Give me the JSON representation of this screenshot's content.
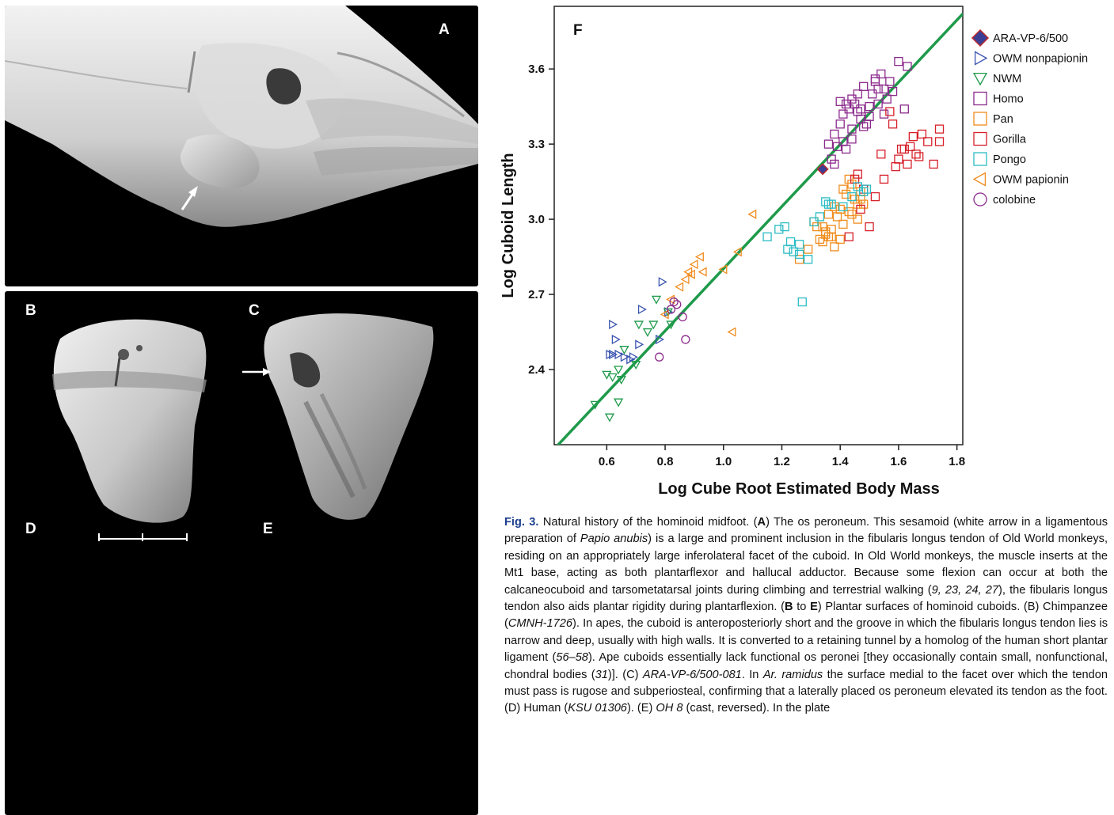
{
  "panels": {
    "a": "A",
    "b": "B",
    "c": "C",
    "d": "D",
    "e": "E",
    "f": "F"
  },
  "chart_data": {
    "type": "scatter",
    "title": "",
    "xlabel": "Log Cube Root Estimated Body Mass",
    "ylabel": "Log Cuboid Length",
    "xlim": [
      0.42,
      1.82
    ],
    "ylim": [
      2.1,
      3.85
    ],
    "xticks": [
      "0.6",
      "0.8",
      "1.0",
      "1.2",
      "1.4",
      "1.6",
      "1.8"
    ],
    "yticks": [
      "2.4",
      "2.7",
      "3.0",
      "3.3",
      "3.6"
    ],
    "legend_position": "right-outside",
    "grid": false,
    "regression_line": {
      "x": [
        0.42,
        1.82
      ],
      "y": [
        2.083,
        3.82
      ],
      "color": "#1e9a4a"
    },
    "series": [
      {
        "name": "ARA-VP-6/500",
        "marker": "diamond",
        "color": "#3a3f95",
        "edge": "#c0282b",
        "x": [
          1.34
        ],
        "y": [
          3.2
        ]
      },
      {
        "name": "OWM nonpapionin",
        "marker": "triangle-right",
        "color": "#3b55b0",
        "x": [
          0.62,
          0.63,
          0.62,
          0.64,
          0.66,
          0.68,
          0.69,
          0.71,
          0.72,
          0.78,
          0.79,
          0.81,
          0.61
        ],
        "y": [
          2.58,
          2.52,
          2.46,
          2.46,
          2.45,
          2.44,
          2.45,
          2.5,
          2.64,
          2.52,
          2.75,
          2.63,
          2.46
        ]
      },
      {
        "name": "NWM",
        "marker": "triangle-down",
        "color": "#1e9a4a",
        "x": [
          0.56,
          0.61,
          0.62,
          0.64,
          0.64,
          0.66,
          0.7,
          0.71,
          0.74,
          0.76,
          0.77,
          0.81,
          0.82,
          0.6,
          0.65
        ],
        "y": [
          2.26,
          2.21,
          2.37,
          2.4,
          2.27,
          2.48,
          2.42,
          2.58,
          2.55,
          2.58,
          2.68,
          2.63,
          2.58,
          2.38,
          2.36
        ]
      },
      {
        "name": "Homo",
        "marker": "square",
        "color": "#8b2a8c",
        "x": [
          1.36,
          1.37,
          1.38,
          1.39,
          1.4,
          1.41,
          1.42,
          1.43,
          1.44,
          1.45,
          1.46,
          1.47,
          1.48,
          1.49,
          1.5,
          1.51,
          1.52,
          1.53,
          1.54,
          1.55,
          1.56,
          1.57,
          1.6,
          1.63,
          1.41,
          1.44,
          1.47,
          1.5,
          1.53,
          1.38,
          1.42,
          1.46,
          1.52,
          1.58,
          1.62,
          1.48,
          1.44,
          1.55,
          1.4
        ],
        "y": [
          3.3,
          3.24,
          3.34,
          3.29,
          3.38,
          3.42,
          3.46,
          3.44,
          3.48,
          3.46,
          3.5,
          3.4,
          3.53,
          3.38,
          3.45,
          3.5,
          3.55,
          3.46,
          3.58,
          3.52,
          3.48,
          3.55,
          3.63,
          3.61,
          3.31,
          3.36,
          3.44,
          3.41,
          3.52,
          3.22,
          3.28,
          3.43,
          3.56,
          3.51,
          3.44,
          3.37,
          3.32,
          3.42,
          3.47
        ]
      },
      {
        "name": "Pan",
        "marker": "square",
        "color": "#f08c1e",
        "x": [
          1.26,
          1.29,
          1.31,
          1.33,
          1.34,
          1.35,
          1.36,
          1.37,
          1.38,
          1.39,
          1.4,
          1.41,
          1.42,
          1.43,
          1.44,
          1.45,
          1.46,
          1.47,
          1.48,
          1.34,
          1.36,
          1.38,
          1.41,
          1.44,
          1.47,
          1.35,
          1.32,
          1.4,
          1.43,
          1.46,
          1.37
        ],
        "y": [
          2.84,
          2.88,
          2.99,
          2.92,
          2.91,
          2.94,
          3.02,
          2.96,
          2.89,
          3.01,
          3.04,
          2.98,
          3.1,
          3.03,
          3.14,
          3.08,
          3.06,
          3.11,
          3.06,
          2.97,
          2.93,
          3.05,
          3.12,
          3.02,
          3.08,
          2.95,
          2.97,
          2.92,
          3.16,
          3.0,
          2.93
        ]
      },
      {
        "name": "Gorilla",
        "marker": "square",
        "color": "#d7202a",
        "x": [
          1.46,
          1.48,
          1.5,
          1.52,
          1.55,
          1.57,
          1.58,
          1.6,
          1.62,
          1.63,
          1.64,
          1.65,
          1.66,
          1.68,
          1.7,
          1.72,
          1.74,
          1.54,
          1.59,
          1.61,
          1.45,
          1.43,
          1.47,
          1.67,
          1.74
        ],
        "y": [
          3.18,
          3.12,
          2.97,
          3.09,
          3.16,
          3.43,
          3.38,
          3.24,
          3.28,
          3.22,
          3.29,
          3.33,
          3.26,
          3.34,
          3.31,
          3.22,
          3.36,
          3.26,
          3.21,
          3.28,
          3.16,
          2.93,
          3.04,
          3.25,
          3.31
        ]
      },
      {
        "name": "Pongo",
        "marker": "square",
        "color": "#2bbcc4",
        "x": [
          1.15,
          1.19,
          1.21,
          1.22,
          1.23,
          1.24,
          1.26,
          1.27,
          1.29,
          1.31,
          1.33,
          1.35,
          1.37,
          1.41,
          1.44,
          1.46,
          1.48,
          1.49,
          1.26,
          1.36
        ],
        "y": [
          2.93,
          2.96,
          2.97,
          2.88,
          2.91,
          2.87,
          2.9,
          2.67,
          2.84,
          2.99,
          3.01,
          3.07,
          3.06,
          3.05,
          3.09,
          3.13,
          3.11,
          3.12,
          2.86,
          3.06
        ]
      },
      {
        "name": "OWM papionin",
        "marker": "triangle-left",
        "color": "#f08c1e",
        "x": [
          0.8,
          0.85,
          0.87,
          0.88,
          0.89,
          0.9,
          0.92,
          0.93,
          1.0,
          1.03,
          1.05,
          1.1,
          0.82
        ],
        "y": [
          2.62,
          2.73,
          2.76,
          2.79,
          2.78,
          2.82,
          2.85,
          2.79,
          2.8,
          2.55,
          2.87,
          3.02,
          2.68
        ]
      },
      {
        "name": "colobine",
        "marker": "circle",
        "color": "#8b2a8c",
        "x": [
          0.78,
          0.82,
          0.83,
          0.86,
          0.87,
          0.84
        ],
        "y": [
          2.45,
          2.64,
          2.67,
          2.61,
          2.52,
          2.66
        ]
      }
    ]
  },
  "caption": {
    "fig_label": "Fig. 3.",
    "text_1": " Natural history of the hominoid midfoot. (",
    "bold_a": "A",
    "text_2": ") The os peroneum. This sesamoid (white arrow in a ligamentous preparation of ",
    "italic_papio": "Papio anubis",
    "text_3": ") is a large and prominent inclusion in the fibularis longus tendon of Old World monkeys, residing on an appropriately large inferolateral facet of the cuboid. In Old World monkeys, the muscle inserts at the Mt1 base, acting as both plantarflexor and hallucal adductor. Because some flexion can occur at both the calcaneocuboid and tarsometatarsal joints during climbing and terrestrial walking (",
    "ref_1": "9, 23, 24, 27",
    "text_4": "), the fibularis longus tendon also aids plantar rigidity during plantarflexion. (",
    "bold_b": "B",
    "text_to": " to ",
    "bold_e": "E",
    "text_5": ") Plantar surfaces of hominoid cuboids. (B) Chimpanzee (",
    "italic_cmnh": "CMNH-1726",
    "text_6": "). In apes, the cuboid is anteroposteriorly short and the groove in which the fibularis longus tendon lies is narrow and deep, usually with high walls. It is converted to a retaining tunnel by a homolog of the human short plantar ligament (",
    "ref_2": "56–58",
    "text_7": "). Ape cuboids essentially lack functional os peronei [they occasionally contain small, nonfunctional, chondral bodies (",
    "ref_3": "31",
    "text_8": ")]. (C) ",
    "italic_ara": "ARA-VP-6/500-081",
    "text_9": ". In ",
    "italic_ar": "Ar. ramidus",
    "text_10": " the surface medial to the facet over which the tendon must pass is rugose and subperiosteal, confirming that a laterally placed os peroneum elevated its tendon as the foot. (D) Human (",
    "italic_ksu": "KSU 01306",
    "text_11": "). (E) ",
    "italic_oh": "OH 8",
    "text_12": " (cast, reversed). In the plate"
  }
}
